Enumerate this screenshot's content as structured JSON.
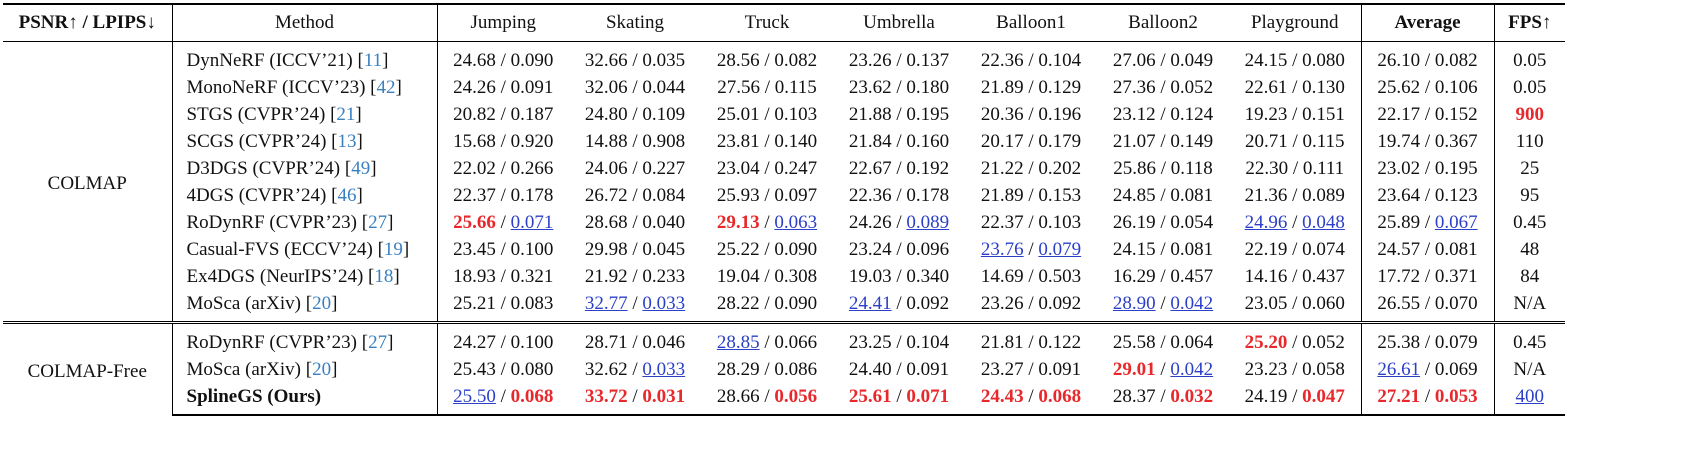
{
  "header": [
    {
      "text": "PSNR↑ / LPIPS↓",
      "bold": true
    },
    {
      "text": "Method"
    },
    {
      "text": "Jumping"
    },
    {
      "text": "Skating"
    },
    {
      "text": "Truck"
    },
    {
      "text": "Umbrella"
    },
    {
      "text": "Balloon1"
    },
    {
      "text": "Balloon2"
    },
    {
      "text": "Playground"
    },
    {
      "text": "Average",
      "bold": true
    },
    {
      "text": "FPS↑",
      "bold": true
    }
  ],
  "separator": " / ",
  "ref_brackets": [
    "[",
    "]"
  ],
  "ref_color": "#3a7fc0",
  "groups": [
    {
      "label": "COLMAP",
      "rows": [
        {
          "method": "DynNeRF (ICCV’21)",
          "ref": "11",
          "cells": [
            [
              "24.68",
              "0.090"
            ],
            [
              "32.66",
              "0.035"
            ],
            [
              "28.56",
              "0.082"
            ],
            [
              "23.26",
              "0.137"
            ],
            [
              "22.36",
              "0.104"
            ],
            [
              "27.06",
              "0.049"
            ],
            [
              "24.15",
              "0.080"
            ],
            [
              "26.10",
              "0.082"
            ]
          ],
          "fps": "0.05"
        },
        {
          "method": "MonoNeRF (ICCV’23)",
          "ref": "42",
          "cells": [
            [
              "24.26",
              "0.091"
            ],
            [
              "32.06",
              "0.044"
            ],
            [
              "27.56",
              "0.115"
            ],
            [
              "23.62",
              "0.180"
            ],
            [
              "21.89",
              "0.129"
            ],
            [
              "27.36",
              "0.052"
            ],
            [
              "22.61",
              "0.130"
            ],
            [
              "25.62",
              "0.106"
            ]
          ],
          "fps": "0.05"
        },
        {
          "method": "STGS (CVPR’24)",
          "ref": "21",
          "cells": [
            [
              "20.82",
              "0.187"
            ],
            [
              "24.80",
              "0.109"
            ],
            [
              "25.01",
              "0.103"
            ],
            [
              "21.88",
              "0.195"
            ],
            [
              "20.36",
              "0.196"
            ],
            [
              "23.12",
              "0.124"
            ],
            [
              "19.23",
              "0.151"
            ],
            [
              "22.17",
              "0.152"
            ]
          ],
          "fps": {
            "text": "900",
            "color": "#e8282b"
          }
        },
        {
          "method": "SCGS (CVPR’24)",
          "ref": "13",
          "cells": [
            [
              "15.68",
              "0.920"
            ],
            [
              "14.88",
              "0.908"
            ],
            [
              "23.81",
              "0.140"
            ],
            [
              "21.84",
              "0.160"
            ],
            [
              "20.17",
              "0.179"
            ],
            [
              "21.07",
              "0.149"
            ],
            [
              "20.71",
              "0.115"
            ],
            [
              "19.74",
              "0.367"
            ]
          ],
          "fps": "110"
        },
        {
          "method": "D3DGS (CVPR’24)",
          "ref": "49",
          "cells": [
            [
              "22.02",
              "0.266"
            ],
            [
              "24.06",
              "0.227"
            ],
            [
              "23.04",
              "0.247"
            ],
            [
              "22.67",
              "0.192"
            ],
            [
              "21.22",
              "0.202"
            ],
            [
              "25.86",
              "0.118"
            ],
            [
              "22.30",
              "0.111"
            ],
            [
              "23.02",
              "0.195"
            ]
          ],
          "fps": "25"
        },
        {
          "method": "4DGS (CVPR’24)",
          "ref": "46",
          "cells": [
            [
              "22.37",
              "0.178"
            ],
            [
              "26.72",
              "0.084"
            ],
            [
              "25.93",
              "0.097"
            ],
            [
              "22.36",
              "0.178"
            ],
            [
              "21.89",
              "0.153"
            ],
            [
              "24.85",
              "0.081"
            ],
            [
              "21.36",
              "0.089"
            ],
            [
              "23.64",
              "0.123"
            ]
          ],
          "fps": "95"
        },
        {
          "method": "RoDynRF (CVPR’23)",
          "ref": "27",
          "cells": [
            [
              {
                "text": "25.66",
                "color": "#e8282b"
              },
              {
                "text": "0.071",
                "color": "#2b3fc7"
              }
            ],
            [
              "28.68",
              "0.040"
            ],
            [
              {
                "text": "29.13",
                "color": "#e8282b"
              },
              {
                "text": "0.063",
                "color": "#2b3fc7"
              }
            ],
            [
              "24.26",
              {
                "text": "0.089",
                "color": "#2b3fc7"
              }
            ],
            [
              "22.37",
              "0.103"
            ],
            [
              "26.19",
              "0.054"
            ],
            [
              {
                "text": "24.96",
                "color": "#2b3fc7"
              },
              {
                "text": "0.048",
                "color": "#2b3fc7"
              }
            ],
            [
              "25.89",
              {
                "text": "0.067",
                "color": "#2b3fc7"
              }
            ]
          ],
          "fps": "0.45"
        },
        {
          "method": "Casual-FVS (ECCV’24)",
          "ref": "19",
          "cells": [
            [
              "23.45",
              "0.100"
            ],
            [
              "29.98",
              "0.045"
            ],
            [
              "25.22",
              "0.090"
            ],
            [
              "23.24",
              "0.096"
            ],
            [
              {
                "text": "23.76",
                "color": "#2b3fc7"
              },
              {
                "text": "0.079",
                "color": "#2b3fc7"
              }
            ],
            [
              "24.15",
              "0.081"
            ],
            [
              "22.19",
              "0.074"
            ],
            [
              "24.57",
              "0.081"
            ]
          ],
          "fps": "48"
        },
        {
          "method": "Ex4DGS (NeurIPS’24)",
          "ref": "18",
          "cells": [
            [
              "18.93",
              "0.321"
            ],
            [
              "21.92",
              "0.233"
            ],
            [
              "19.04",
              "0.308"
            ],
            [
              "19.03",
              "0.340"
            ],
            [
              "14.69",
              "0.503"
            ],
            [
              "16.29",
              "0.457"
            ],
            [
              "14.16",
              "0.437"
            ],
            [
              "17.72",
              "0.371"
            ]
          ],
          "fps": "84"
        },
        {
          "method": "MoSca (arXiv)",
          "ref": "20",
          "cells": [
            [
              "25.21",
              "0.083"
            ],
            [
              {
                "text": "32.77",
                "color": "#2b3fc7"
              },
              {
                "text": "0.033",
                "color": "#2b3fc7"
              }
            ],
            [
              "28.22",
              "0.090"
            ],
            [
              {
                "text": "24.41",
                "color": "#2b3fc7"
              },
              "0.092"
            ],
            [
              "23.26",
              "0.092"
            ],
            [
              {
                "text": "28.90",
                "color": "#2b3fc7"
              },
              {
                "text": "0.042",
                "color": "#2b3fc7"
              }
            ],
            [
              "23.05",
              "0.060"
            ],
            [
              "26.55",
              "0.070"
            ]
          ],
          "fps": "N/A"
        }
      ]
    },
    {
      "label": "COLMAP-Free",
      "rows": [
        {
          "method": "RoDynRF (CVPR’23)",
          "ref": "27",
          "cells": [
            [
              "24.27",
              "0.100"
            ],
            [
              "28.71",
              "0.046"
            ],
            [
              {
                "text": "28.85",
                "color": "#2b3fc7"
              },
              "0.066"
            ],
            [
              "23.25",
              "0.104"
            ],
            [
              "21.81",
              "0.122"
            ],
            [
              "25.58",
              "0.064"
            ],
            [
              {
                "text": "25.20",
                "color": "#e8282b"
              },
              "0.052"
            ],
            [
              "25.38",
              "0.079"
            ]
          ],
          "fps": "0.45"
        },
        {
          "method": "MoSca (arXiv)",
          "ref": "20",
          "cells": [
            [
              "25.43",
              "0.080"
            ],
            [
              "32.62",
              {
                "text": "0.033",
                "color": "#2b3fc7"
              }
            ],
            [
              "28.29",
              "0.086"
            ],
            [
              "24.40",
              "0.091"
            ],
            [
              "23.27",
              "0.091"
            ],
            [
              {
                "text": "29.01",
                "color": "#e8282b"
              },
              {
                "text": "0.042",
                "color": "#2b3fc7"
              }
            ],
            [
              "23.23",
              "0.058"
            ],
            [
              {
                "text": "26.61",
                "color": "#2b3fc7"
              },
              "0.069"
            ]
          ],
          "fps": "N/A"
        },
        {
          "method": "SplineGS (Ours)",
          "bold": true,
          "cells": [
            [
              {
                "text": "25.50",
                "color": "#2b3fc7"
              },
              {
                "text": "0.068",
                "color": "#e8282b"
              }
            ],
            [
              {
                "text": "33.72",
                "color": "#e8282b"
              },
              {
                "text": "0.031",
                "color": "#e8282b"
              }
            ],
            [
              "28.66",
              {
                "text": "0.056",
                "color": "#e8282b"
              }
            ],
            [
              {
                "text": "25.61",
                "color": "#e8282b"
              },
              {
                "text": "0.071",
                "color": "#e8282b"
              }
            ],
            [
              {
                "text": "24.43",
                "color": "#e8282b"
              },
              {
                "text": "0.068",
                "color": "#e8282b"
              }
            ],
            [
              "28.37",
              {
                "text": "0.032",
                "color": "#e8282b"
              }
            ],
            [
              "24.19",
              {
                "text": "0.047",
                "color": "#e8282b"
              }
            ],
            [
              {
                "text": "27.21",
                "color": "#e8282b"
              },
              {
                "text": "0.053",
                "color": "#e8282b"
              }
            ]
          ],
          "fps": {
            "text": "400",
            "color": "#2b3fc7"
          }
        }
      ]
    }
  ]
}
